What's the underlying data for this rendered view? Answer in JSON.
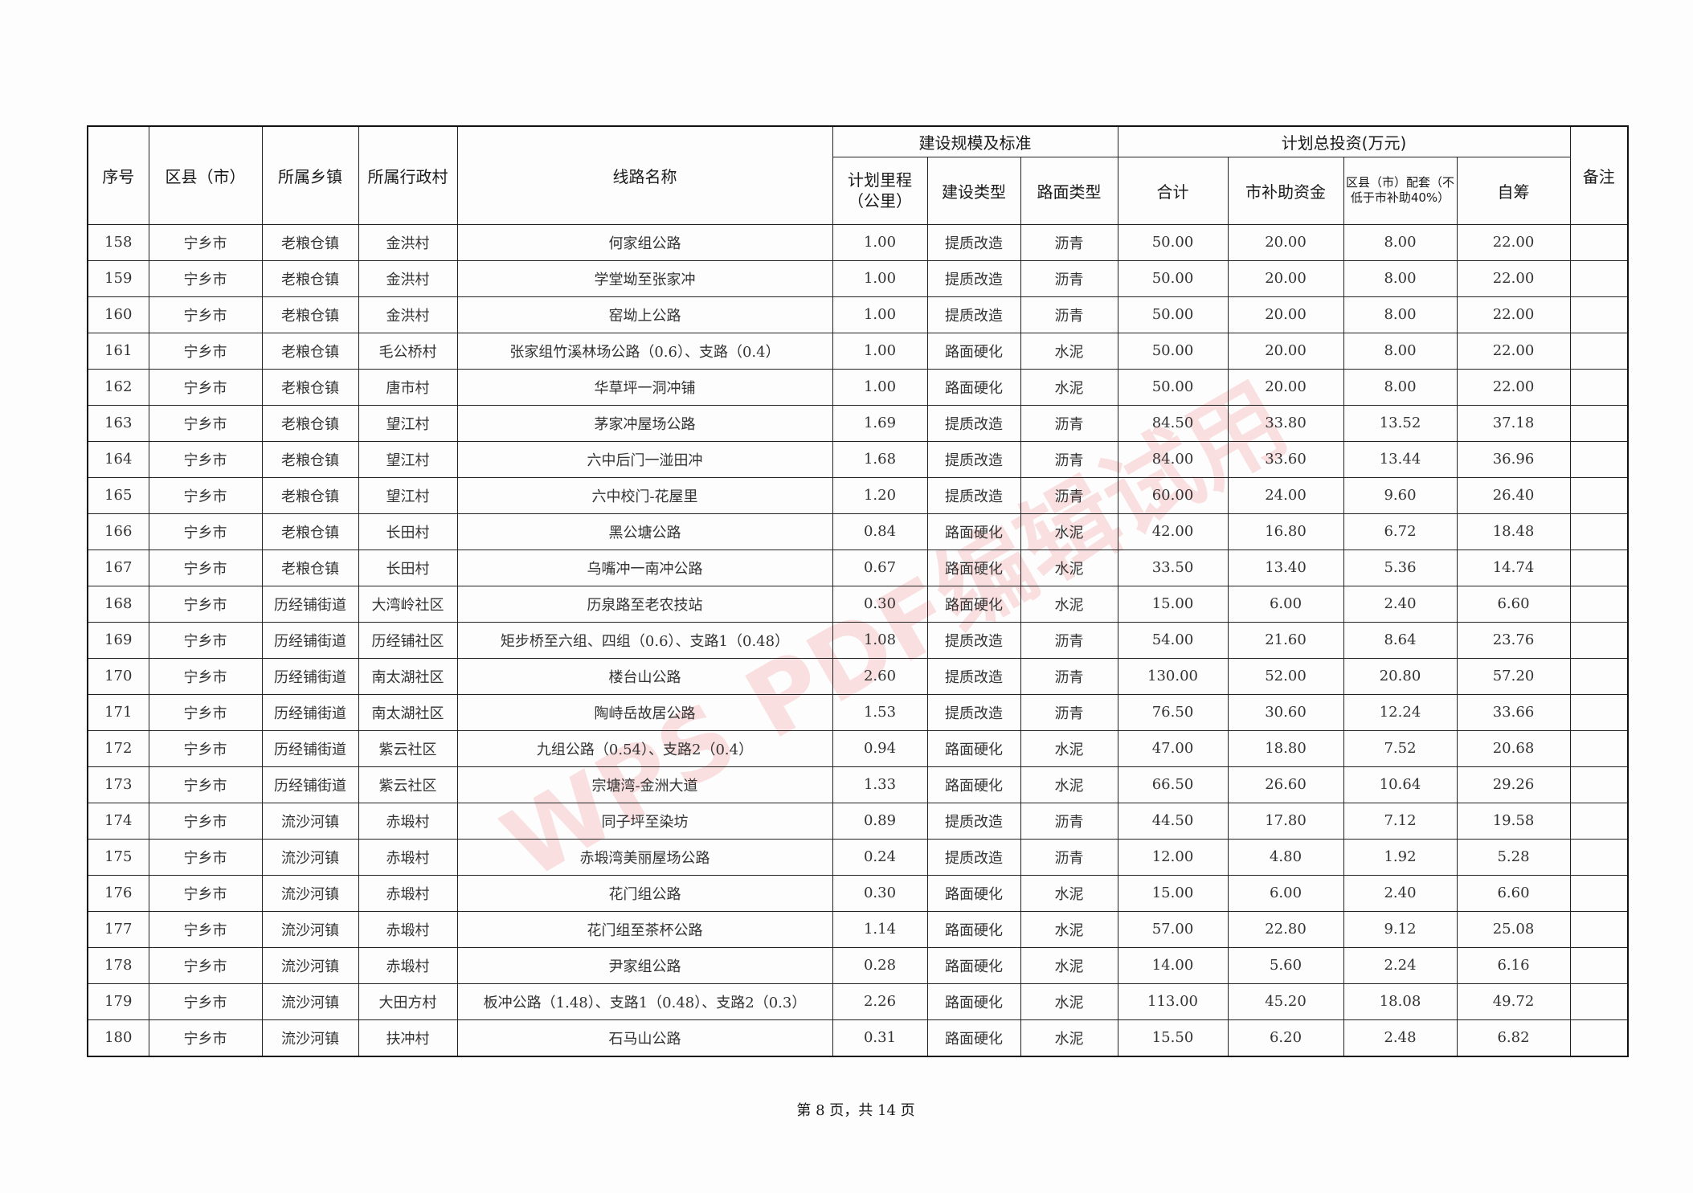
{
  "header": {
    "seq": "序号",
    "county": "区县（市）",
    "town": "所属乡镇",
    "village": "所属行政村",
    "route": "线路名称",
    "group_scale": "建设规模及标准",
    "mileage": "计划里程（公里）",
    "build_type": "建设类型",
    "surface_type": "路面类型",
    "group_invest": "计划总投资(万元)",
    "total": "合计",
    "city_subsidy": "市补助资金",
    "county_match": "区县（市）配套（不低于市补助40%）",
    "self_raised": "自筹",
    "remark": "备注"
  },
  "rows": [
    [
      "158",
      "宁乡市",
      "老粮仓镇",
      "金洪村",
      "何家组公路",
      "1.00",
      "提质改造",
      "沥青",
      "50.00",
      "20.00",
      "8.00",
      "22.00",
      ""
    ],
    [
      "159",
      "宁乡市",
      "老粮仓镇",
      "金洪村",
      "学堂坳至张家冲",
      "1.00",
      "提质改造",
      "沥青",
      "50.00",
      "20.00",
      "8.00",
      "22.00",
      ""
    ],
    [
      "160",
      "宁乡市",
      "老粮仓镇",
      "金洪村",
      "窑坳上公路",
      "1.00",
      "提质改造",
      "沥青",
      "50.00",
      "20.00",
      "8.00",
      "22.00",
      ""
    ],
    [
      "161",
      "宁乡市",
      "老粮仓镇",
      "毛公桥村",
      "张家组竹溪林场公路（0.6）、支路（0.4）",
      "1.00",
      "路面硬化",
      "水泥",
      "50.00",
      "20.00",
      "8.00",
      "22.00",
      ""
    ],
    [
      "162",
      "宁乡市",
      "老粮仓镇",
      "唐市村",
      "华草坪一洞冲铺",
      "1.00",
      "路面硬化",
      "水泥",
      "50.00",
      "20.00",
      "8.00",
      "22.00",
      ""
    ],
    [
      "163",
      "宁乡市",
      "老粮仓镇",
      "望江村",
      "茅家冲屋场公路",
      "1.69",
      "提质改造",
      "沥青",
      "84.50",
      "33.80",
      "13.52",
      "37.18",
      ""
    ],
    [
      "164",
      "宁乡市",
      "老粮仓镇",
      "望江村",
      "六中后门一湴田冲",
      "1.68",
      "提质改造",
      "沥青",
      "84.00",
      "33.60",
      "13.44",
      "36.96",
      ""
    ],
    [
      "165",
      "宁乡市",
      "老粮仓镇",
      "望江村",
      "六中校门-花屋里",
      "1.20",
      "提质改造",
      "沥青",
      "60.00",
      "24.00",
      "9.60",
      "26.40",
      ""
    ],
    [
      "166",
      "宁乡市",
      "老粮仓镇",
      "长田村",
      "黑公塘公路",
      "0.84",
      "路面硬化",
      "水泥",
      "42.00",
      "16.80",
      "6.72",
      "18.48",
      ""
    ],
    [
      "167",
      "宁乡市",
      "老粮仓镇",
      "长田村",
      "乌嘴冲一南冲公路",
      "0.67",
      "路面硬化",
      "水泥",
      "33.50",
      "13.40",
      "5.36",
      "14.74",
      ""
    ],
    [
      "168",
      "宁乡市",
      "历经铺街道",
      "大湾岭社区",
      "历泉路至老农技站",
      "0.30",
      "路面硬化",
      "水泥",
      "15.00",
      "6.00",
      "2.40",
      "6.60",
      ""
    ],
    [
      "169",
      "宁乡市",
      "历经铺街道",
      "历经铺社区",
      "矩步桥至六组、四组（0.6）、支路1（0.48）",
      "1.08",
      "提质改造",
      "沥青",
      "54.00",
      "21.60",
      "8.64",
      "23.76",
      ""
    ],
    [
      "170",
      "宁乡市",
      "历经铺街道",
      "南太湖社区",
      "楼台山公路",
      "2.60",
      "提质改造",
      "沥青",
      "130.00",
      "52.00",
      "20.80",
      "57.20",
      ""
    ],
    [
      "171",
      "宁乡市",
      "历经铺街道",
      "南太湖社区",
      "陶峙岳故居公路",
      "1.53",
      "提质改造",
      "沥青",
      "76.50",
      "30.60",
      "12.24",
      "33.66",
      ""
    ],
    [
      "172",
      "宁乡市",
      "历经铺街道",
      "紫云社区",
      "九组公路（0.54）、支路2（0.4）",
      "0.94",
      "路面硬化",
      "水泥",
      "47.00",
      "18.80",
      "7.52",
      "20.68",
      ""
    ],
    [
      "173",
      "宁乡市",
      "历经铺街道",
      "紫云社区",
      "宗塘湾-金洲大道",
      "1.33",
      "路面硬化",
      "水泥",
      "66.50",
      "26.60",
      "10.64",
      "29.26",
      ""
    ],
    [
      "174",
      "宁乡市",
      "流沙河镇",
      "赤塅村",
      "同子坪至染坊",
      "0.89",
      "提质改造",
      "沥青",
      "44.50",
      "17.80",
      "7.12",
      "19.58",
      ""
    ],
    [
      "175",
      "宁乡市",
      "流沙河镇",
      "赤塅村",
      "赤塅湾美丽屋场公路",
      "0.24",
      "提质改造",
      "沥青",
      "12.00",
      "4.80",
      "1.92",
      "5.28",
      ""
    ],
    [
      "176",
      "宁乡市",
      "流沙河镇",
      "赤塅村",
      "花门组公路",
      "0.30",
      "路面硬化",
      "水泥",
      "15.00",
      "6.00",
      "2.40",
      "6.60",
      ""
    ],
    [
      "177",
      "宁乡市",
      "流沙河镇",
      "赤塅村",
      "花门组至茶杯公路",
      "1.14",
      "路面硬化",
      "水泥",
      "57.00",
      "22.80",
      "9.12",
      "25.08",
      ""
    ],
    [
      "178",
      "宁乡市",
      "流沙河镇",
      "赤塅村",
      "尹家组公路",
      "0.28",
      "路面硬化",
      "水泥",
      "14.00",
      "5.60",
      "2.24",
      "6.16",
      ""
    ],
    [
      "179",
      "宁乡市",
      "流沙河镇",
      "大田方村",
      "板冲公路（1.48）、支路1（0.48）、支路2（0.3）",
      "2.26",
      "路面硬化",
      "水泥",
      "113.00",
      "45.20",
      "18.08",
      "49.72",
      ""
    ],
    [
      "180",
      "宁乡市",
      "流沙河镇",
      "扶冲村",
      "石马山公路",
      "0.31",
      "路面硬化",
      "水泥",
      "15.50",
      "6.20",
      "2.48",
      "6.82",
      ""
    ]
  ],
  "footer": {
    "page_info": "第 8 页，共 14 页"
  },
  "watermark": {
    "text": "WPS PDF编辑试用",
    "color": "#e64646"
  }
}
